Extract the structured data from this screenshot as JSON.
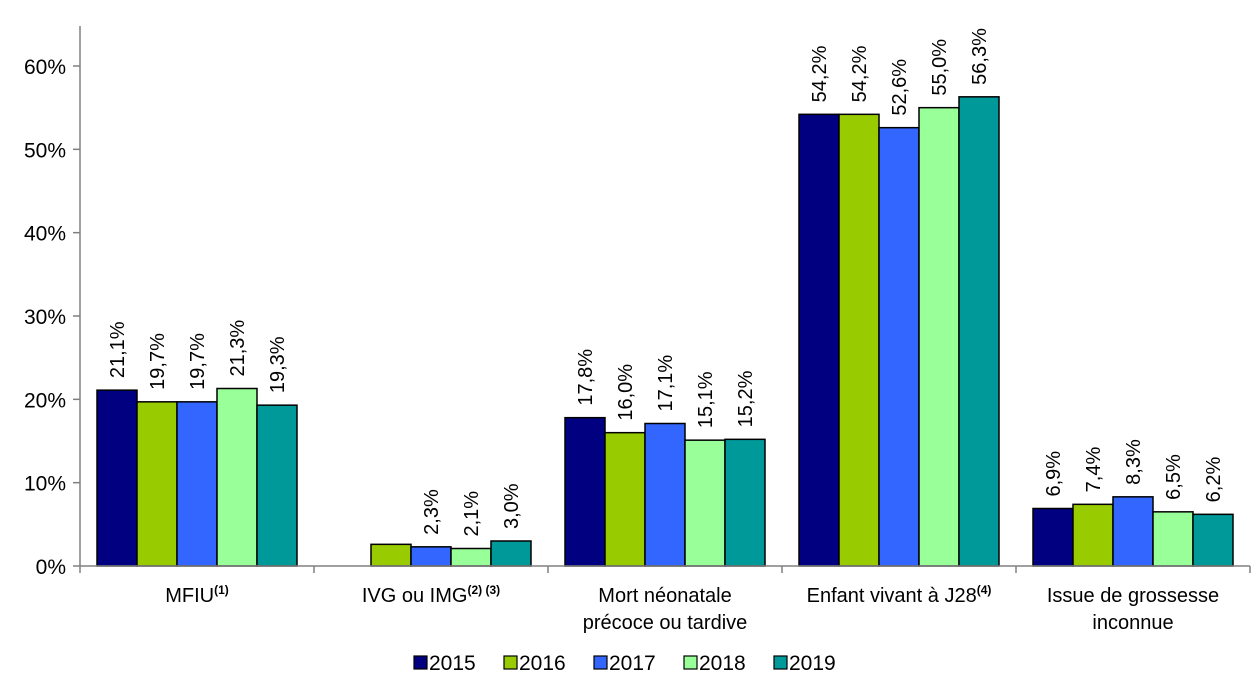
{
  "chart_data": {
    "type": "bar",
    "title": "",
    "xlabel": "",
    "ylabel": "",
    "ylim": [
      0,
      0.6
    ],
    "yticks": [
      "0%",
      "10%",
      "20%",
      "30%",
      "40%",
      "50%",
      "60%"
    ],
    "grid": false,
    "legend_position": "bottom",
    "categories": [
      {
        "main": "MFIU",
        "sup": "(1)",
        "line2": ""
      },
      {
        "main": "IVG ou IMG",
        "sup": "(2) (3)",
        "line2": ""
      },
      {
        "main": "Mort néonatale",
        "sup": "",
        "line2": "précoce ou tardive"
      },
      {
        "main": "Enfant vivant à J28",
        "sup": "(4)",
        "line2": ""
      },
      {
        "main": "Issue de grossesse",
        "sup": "",
        "line2": "inconnue"
      }
    ],
    "series": [
      {
        "name": "2015",
        "color": "#000080",
        "values": [
          0.211,
          null,
          0.178,
          0.542,
          0.069
        ],
        "labels": [
          "21,1%",
          "",
          "17,8%",
          "54,2%",
          "6,9%"
        ]
      },
      {
        "name": "2016",
        "color": "#99cc00",
        "values": [
          0.197,
          0.026,
          0.16,
          0.542,
          0.074
        ],
        "labels": [
          "19,7%",
          "",
          "16,0%",
          "54,2%",
          "7,4%"
        ]
      },
      {
        "name": "2017",
        "color": "#3366ff",
        "values": [
          0.197,
          0.023,
          0.171,
          0.526,
          0.083
        ],
        "labels": [
          "19,7%",
          "2,3%",
          "17,1%",
          "52,6%",
          "8,3%"
        ]
      },
      {
        "name": "2018",
        "color": "#99ff99",
        "values": [
          0.213,
          0.021,
          0.151,
          0.55,
          0.065
        ],
        "labels": [
          "21,3%",
          "2,1%",
          "15,1%",
          "55,0%",
          "6,5%"
        ]
      },
      {
        "name": "2019",
        "color": "#009999",
        "values": [
          0.193,
          0.03,
          0.152,
          0.563,
          0.062
        ],
        "labels": [
          "19,3%",
          "3,0%",
          "15,2%",
          "56,3%",
          "6,2%"
        ]
      }
    ]
  }
}
